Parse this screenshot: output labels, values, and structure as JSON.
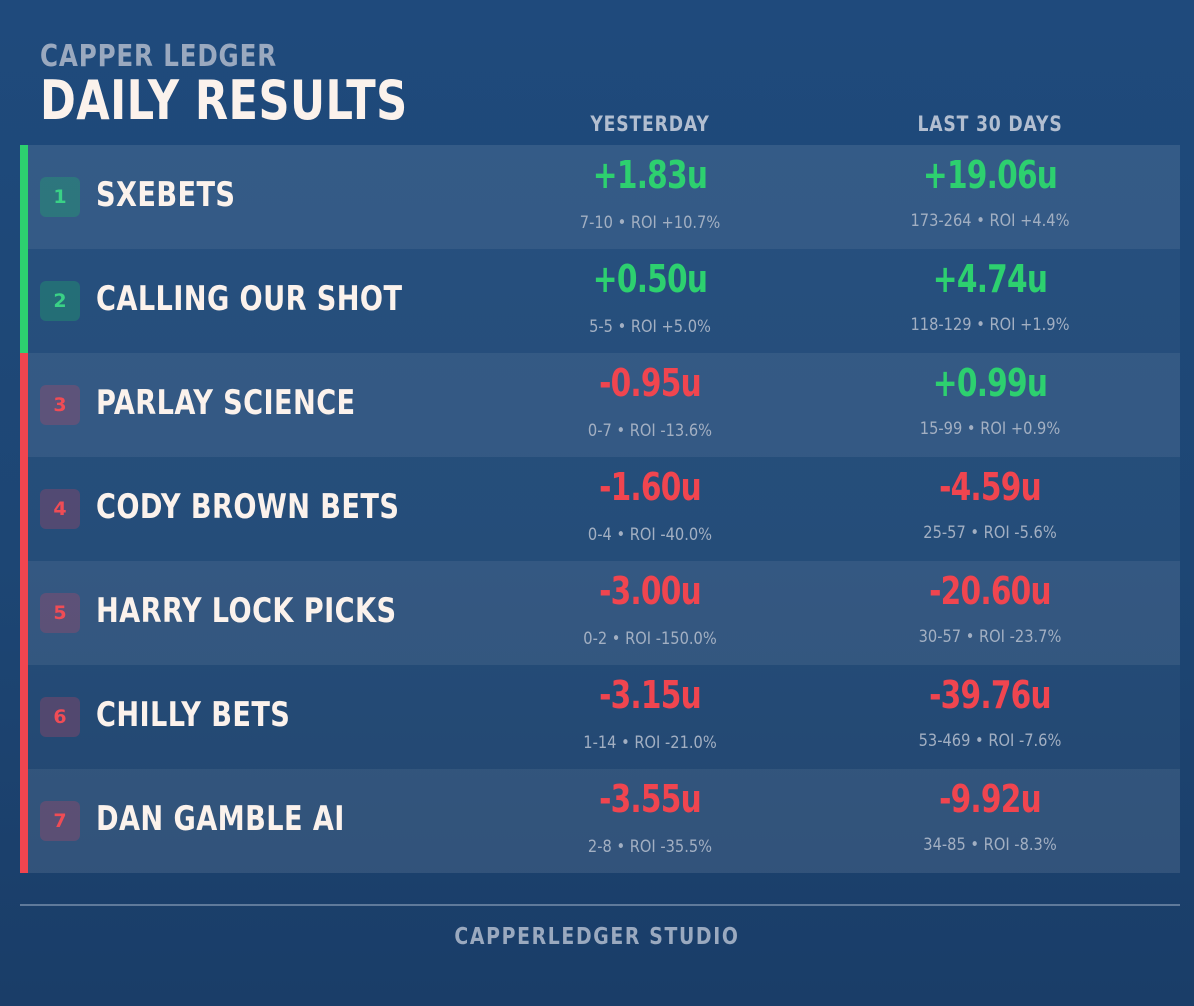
{
  "header": {
    "brand": "CAPPER LEDGER",
    "title": "DAILY RESULTS"
  },
  "columns": {
    "yesterday": "YESTERDAY",
    "last30": "LAST 30 DAYS"
  },
  "colors": {
    "positive": "#2dd06f",
    "negative": "#f0454f",
    "background": "#1f4a7c"
  },
  "rows": [
    {
      "rank": "1",
      "name": "SXEBETS",
      "trend": "positive",
      "yesterday": {
        "units": "+1.83u",
        "sign": "positive",
        "detail": "7-10 • ROI +10.7%"
      },
      "last30": {
        "units": "+19.06u",
        "sign": "positive",
        "detail": "173-264 • ROI +4.4%"
      }
    },
    {
      "rank": "2",
      "name": "CALLING OUR SHOT",
      "trend": "positive",
      "yesterday": {
        "units": "+0.50u",
        "sign": "positive",
        "detail": "5-5 • ROI +5.0%"
      },
      "last30": {
        "units": "+4.74u",
        "sign": "positive",
        "detail": "118-129 • ROI +1.9%"
      }
    },
    {
      "rank": "3",
      "name": "PARLAY SCIENCE",
      "trend": "negative",
      "yesterday": {
        "units": "-0.95u",
        "sign": "negative",
        "detail": "0-7 • ROI -13.6%"
      },
      "last30": {
        "units": "+0.99u",
        "sign": "positive",
        "detail": "15-99 • ROI +0.9%"
      }
    },
    {
      "rank": "4",
      "name": "CODY BROWN BETS",
      "trend": "negative",
      "yesterday": {
        "units": "-1.60u",
        "sign": "negative",
        "detail": "0-4 • ROI -40.0%"
      },
      "last30": {
        "units": "-4.59u",
        "sign": "negative",
        "detail": "25-57 • ROI -5.6%"
      }
    },
    {
      "rank": "5",
      "name": "HARRY LOCK PICKS",
      "trend": "negative",
      "yesterday": {
        "units": "-3.00u",
        "sign": "negative",
        "detail": "0-2 • ROI -150.0%"
      },
      "last30": {
        "units": "-20.60u",
        "sign": "negative",
        "detail": "30-57 • ROI -23.7%"
      }
    },
    {
      "rank": "6",
      "name": "CHILLY BETS",
      "trend": "negative",
      "yesterday": {
        "units": "-3.15u",
        "sign": "negative",
        "detail": "1-14 • ROI -21.0%"
      },
      "last30": {
        "units": "-39.76u",
        "sign": "negative",
        "detail": "53-469 • ROI -7.6%"
      }
    },
    {
      "rank": "7",
      "name": "DAN GAMBLE AI",
      "trend": "negative",
      "yesterday": {
        "units": "-3.55u",
        "sign": "negative",
        "detail": "2-8 • ROI -35.5%"
      },
      "last30": {
        "units": "-9.92u",
        "sign": "negative",
        "detail": "34-85 • ROI -8.3%"
      }
    }
  ],
  "footer": {
    "label": "CAPPERLEDGER STUDIO"
  }
}
